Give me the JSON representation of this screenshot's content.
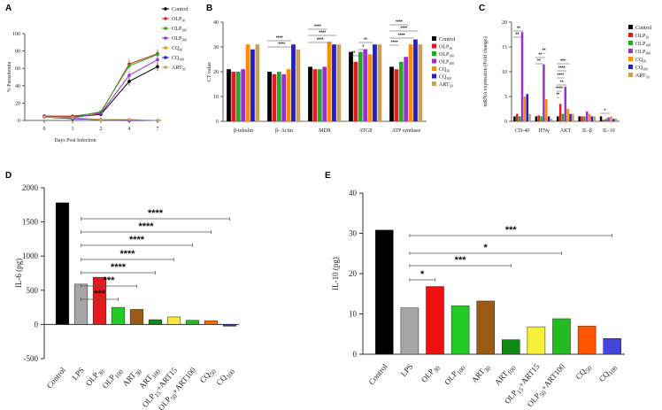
{
  "panel_letters": [
    "A",
    "B",
    "C",
    "D",
    "E"
  ],
  "chart_data": [
    {
      "panel": "A",
      "type": "line",
      "xlabel": "Days Post Infection",
      "ylabel": "% Parasitemia",
      "x": [
        0,
        1,
        2,
        4,
        7
      ],
      "x_tick_labels": [
        "0",
        "1",
        "2",
        "4",
        "7"
      ],
      "ylim": [
        0,
        100
      ],
      "y_ticks": [
        "0",
        "20",
        "40",
        "60",
        "80",
        "100"
      ],
      "series": [
        {
          "name": "Control",
          "color": "#000000",
          "values": [
            5,
            4,
            7,
            45,
            62
          ]
        },
        {
          "name": "OLP30",
          "color": "#e41a1c",
          "values": [
            5,
            5,
            9,
            65,
            77
          ]
        },
        {
          "name": "OLP100",
          "color": "#22aa22",
          "values": [
            5,
            4,
            10,
            63,
            76
          ]
        },
        {
          "name": "OLP300",
          "color": "#9932cc",
          "values": [
            5,
            3,
            8,
            52,
            70
          ]
        },
        {
          "name": "CQ30",
          "color": "#ff8c00",
          "values": [
            4,
            2,
            1,
            1,
            0
          ]
        },
        {
          "name": "CQ100",
          "color": "#1f1fcf",
          "values": [
            4,
            2,
            1,
            0,
            0
          ]
        },
        {
          "name": "ART30",
          "color": "#c8a060",
          "values": [
            4,
            3,
            1,
            1,
            0
          ]
        }
      ],
      "legend": [
        {
          "base": "Control",
          "sub": ""
        },
        {
          "base": "OLP",
          "sub": "30"
        },
        {
          "base": "OLP",
          "sub": "100"
        },
        {
          "base": "OLP",
          "sub": "300"
        },
        {
          "base": "CQ",
          "sub": "30"
        },
        {
          "base": "CQ",
          "sub": "100"
        },
        {
          "base": "ART",
          "sub": "30"
        }
      ]
    },
    {
      "panel": "B",
      "type": "bar",
      "ylabel": "CT value",
      "ylim": [
        0,
        40
      ],
      "y_ticks": [
        "0",
        "10",
        "20",
        "30",
        "40"
      ],
      "categories": [
        "β-tubulin",
        "β- Actin",
        "MDR",
        "ATG8",
        "ATP synthase"
      ],
      "series": [
        {
          "name": "Control",
          "color": "#000000",
          "values": [
            21,
            20,
            22,
            28,
            22
          ]
        },
        {
          "name": "OLP30",
          "color": "#e41a1c",
          "values": [
            20,
            19,
            21,
            24,
            21
          ]
        },
        {
          "name": "OLP100",
          "color": "#22aa22",
          "values": [
            20,
            20,
            21,
            28,
            24
          ]
        },
        {
          "name": "OLP300",
          "color": "#9932cc",
          "values": [
            21,
            19,
            22,
            29,
            26
          ]
        },
        {
          "name": "CQ30",
          "color": "#ff8c00",
          "values": [
            31,
            21,
            32,
            27,
            31
          ]
        },
        {
          "name": "CQ100",
          "color": "#1f1fcf",
          "values": [
            29,
            31,
            31,
            31,
            33
          ]
        },
        {
          "name": "ART30",
          "color": "#c8a060",
          "values": [
            31,
            29,
            31,
            31,
            31
          ]
        }
      ],
      "legend": [
        {
          "base": "Control",
          "sub": ""
        },
        {
          "base": "OLP",
          "sub": "30"
        },
        {
          "base": "OLP",
          "sub": "100"
        },
        {
          "base": "OLP",
          "sub": "300"
        },
        {
          "base": "CQ",
          "sub": "30"
        },
        {
          "base": "CQ",
          "sub": "100"
        },
        {
          "base": "ART",
          "sub": "30"
        }
      ],
      "annotations": [
        "****",
        "****",
        "****",
        "****",
        "****",
        "**",
        "*",
        "**",
        "****",
        "****",
        "****",
        "****"
      ]
    },
    {
      "panel": "C",
      "type": "bar",
      "ylabel": "mRNA expression (Fold change)",
      "ylim": [
        0,
        20
      ],
      "y_ticks": [
        "0",
        "5",
        "10",
        "15",
        "20"
      ],
      "categories": [
        "CD-40",
        "IFNγ",
        "AKT",
        "IL-β",
        "IL-10"
      ],
      "series": [
        {
          "name": "Control",
          "color": "#000000",
          "values": [
            1,
            1,
            1,
            1,
            1
          ]
        },
        {
          "name": "OLP30",
          "color": "#e41a1c",
          "values": [
            1.5,
            1.2,
            3.5,
            1,
            0.3
          ]
        },
        {
          "name": "OLP100",
          "color": "#22aa22",
          "values": [
            1,
            1,
            1.5,
            1,
            0.5
          ]
        },
        {
          "name": "OLP300",
          "color": "#9932cc",
          "values": [
            18,
            11.5,
            7,
            2,
            0.8
          ]
        },
        {
          "name": "CQ30",
          "color": "#ff8c00",
          "values": [
            5,
            4.5,
            2.5,
            1.5,
            1
          ]
        },
        {
          "name": "CQ100",
          "color": "#1f1fcf",
          "values": [
            5.5,
            1,
            1.5,
            1,
            0.5
          ]
        },
        {
          "name": "ART30",
          "color": "#c8a060",
          "values": [
            1.5,
            0.5,
            1.5,
            1,
            0.5
          ]
        }
      ],
      "legend": [
        {
          "base": "Control",
          "sub": ""
        },
        {
          "base": "OLP",
          "sub": "30"
        },
        {
          "base": "OLP",
          "sub": "100"
        },
        {
          "base": "OLP",
          "sub": "300"
        },
        {
          "base": "CQ",
          "sub": "30"
        },
        {
          "base": "CQ",
          "sub": "100"
        },
        {
          "base": "ART",
          "sub": "30"
        }
      ],
      "annotations": [
        "**",
        "**",
        "**",
        "**",
        "**",
        "**",
        "****",
        "**",
        "****",
        "****",
        "***",
        "*"
      ]
    },
    {
      "panel": "D",
      "type": "bar",
      "ylabel": "IL-6 (pg)",
      "ylim": [
        -500,
        2000
      ],
      "y_ticks": [
        "-500",
        "0",
        "500",
        "1000",
        "1500",
        "2000"
      ],
      "categories": [
        {
          "base": "Control",
          "sub": "",
          "tail": ""
        },
        {
          "base": "LPS",
          "sub": "",
          "tail": ""
        },
        {
          "base": "OLP",
          "sub": "30",
          "tail": ""
        },
        {
          "base": "OLP",
          "sub": "100",
          "tail": ""
        },
        {
          "base": "ART",
          "sub": "30",
          "tail": ""
        },
        {
          "base": "ART",
          "sub": "100",
          "tail": ""
        },
        {
          "base": "OLP",
          "sub": "15",
          "tail": "+ART15"
        },
        {
          "base": "OLP",
          "sub": "50",
          "tail": "+ART100"
        },
        {
          "base": "CQ",
          "sub": "50",
          "tail": ""
        },
        {
          "base": "CQ",
          "sub": "100",
          "tail": ""
        }
      ],
      "values": [
        1780,
        590,
        690,
        250,
        220,
        70,
        110,
        60,
        55,
        -25
      ],
      "colors": [
        "#000000",
        "#a6a6a6",
        "#e41a1c",
        "#22cc22",
        "#9c5a14",
        "#118811",
        "#f7e83a",
        "#22bb22",
        "#ff6a00",
        "#2a2aff"
      ],
      "significance": [
        {
          "label": "****",
          "from": 1,
          "to": 9
        },
        {
          "label": "****",
          "from": 1,
          "to": 8
        },
        {
          "label": "****",
          "from": 1,
          "to": 7
        },
        {
          "label": "****",
          "from": 1,
          "to": 6
        },
        {
          "label": "****",
          "from": 1,
          "to": 5
        },
        {
          "label": "***",
          "from": 1,
          "to": 4
        },
        {
          "label": "***",
          "from": 1,
          "to": 3
        }
      ]
    },
    {
      "panel": "E",
      "type": "bar",
      "ylabel": "IL-10 (pg)",
      "ylim": [
        0,
        40
      ],
      "y_ticks": [
        "0",
        "10",
        "20",
        "30",
        "40"
      ],
      "categories": [
        {
          "base": "Control",
          "sub": "",
          "tail": ""
        },
        {
          "base": "LPS",
          "sub": "",
          "tail": ""
        },
        {
          "base": "OLP",
          "sub": "30",
          "tail": ""
        },
        {
          "base": "OLP",
          "sub": "100",
          "tail": ""
        },
        {
          "base": "ART",
          "sub": "30",
          "tail": ""
        },
        {
          "base": "ART",
          "sub": "100",
          "tail": ""
        },
        {
          "base": "OLP",
          "sub": "15",
          "tail": "+ART15"
        },
        {
          "base": "OLP",
          "sub": "50",
          "tail": "+ART100"
        },
        {
          "base": "CQ",
          "sub": "50",
          "tail": ""
        },
        {
          "base": "CQ",
          "sub": "100",
          "tail": ""
        }
      ],
      "values": [
        30.8,
        11.5,
        16.8,
        12.0,
        13.2,
        3.6,
        6.8,
        8.8,
        7.0,
        3.9
      ],
      "colors": [
        "#000000",
        "#a6a6a6",
        "#ee1111",
        "#22cc22",
        "#9c5a14",
        "#118811",
        "#f7f03a",
        "#22bb22",
        "#ff5500",
        "#4444dd"
      ],
      "significance": [
        {
          "label": "***",
          "from": 1,
          "to": 9
        },
        {
          "label": "*",
          "from": 1,
          "to": 7
        },
        {
          "label": "***",
          "from": 1,
          "to": 5
        },
        {
          "label": "*",
          "from": 1,
          "to": 2
        }
      ]
    }
  ]
}
